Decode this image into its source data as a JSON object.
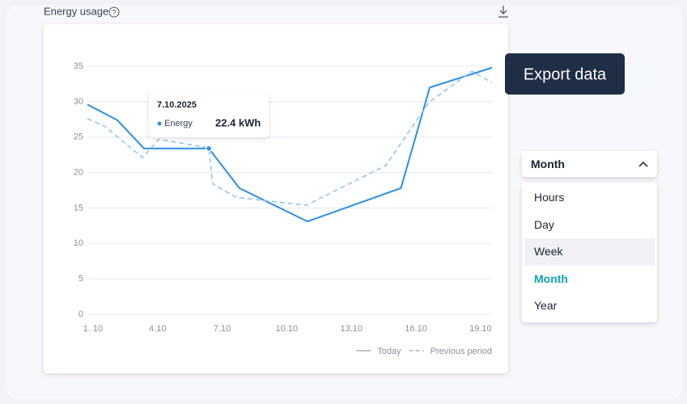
{
  "chart_data": {
    "type": "line",
    "title": "Energy usage",
    "xlim": [
      0.74,
      19.53
    ],
    "xticks": [
      {
        "value": 1,
        "label": "1. 10"
      },
      {
        "value": 4,
        "label": "4.10"
      },
      {
        "value": 7,
        "label": "7.10"
      },
      {
        "value": 10,
        "label": "10.10"
      },
      {
        "value": 13,
        "label": "13.10"
      },
      {
        "value": 16,
        "label": "16.10"
      },
      {
        "value": 19,
        "label": "19.10"
      }
    ],
    "ylim": [
      0,
      35
    ],
    "yticks": [
      0,
      5,
      10,
      15,
      20,
      25,
      30,
      35
    ],
    "grid": true,
    "legend": "bottom-right",
    "series": [
      {
        "name": "Today",
        "color": "#2b8fe8",
        "dash": false,
        "x": [
          0.74,
          2.13,
          3.37,
          6.38,
          7.8,
          10.96,
          15.3,
          16.64,
          19.53
        ],
        "values": [
          29.6,
          27.4,
          23.4,
          23.4,
          17.8,
          13.1,
          17.8,
          32.0,
          34.8
        ]
      },
      {
        "name": "Previous period",
        "color": "#8cc4f2",
        "dash": true,
        "x": [
          0.74,
          1.56,
          3.3,
          4.05,
          6.38,
          6.56,
          7.65,
          10.9,
          14.6,
          16.6,
          18.6,
          19.53
        ],
        "values": [
          27.6,
          26.5,
          22.1,
          24.7,
          23.5,
          18.4,
          16.5,
          15.4,
          21.0,
          29.9,
          34.3,
          32.7
        ]
      }
    ]
  },
  "tooltip": {
    "date": "7.10.2025",
    "series": "Energy",
    "value": "22.4 kWh"
  },
  "export_button": "Export data",
  "dropdown": {
    "selected": "Month",
    "options": [
      "Hours",
      "Day",
      "Week",
      "Month",
      "Year"
    ]
  }
}
